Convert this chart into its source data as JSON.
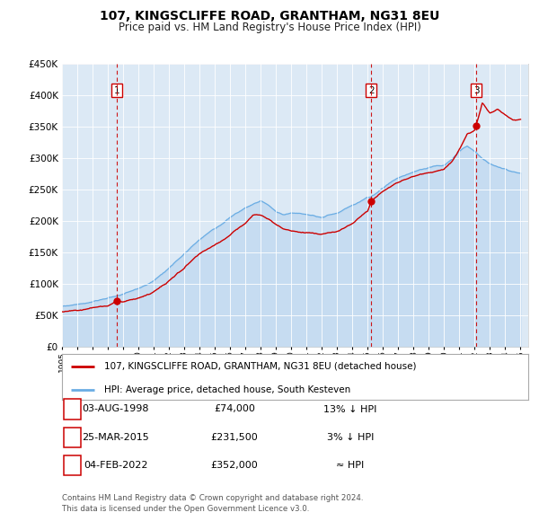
{
  "title": "107, KINGSCLIFFE ROAD, GRANTHAM, NG31 8EU",
  "subtitle": "Price paid vs. HM Land Registry's House Price Index (HPI)",
  "bg_color": "#dce9f5",
  "fig_bg_color": "#ffffff",
  "ylim": [
    0,
    450000
  ],
  "yticks": [
    0,
    50000,
    100000,
    150000,
    200000,
    250000,
    300000,
    350000,
    400000,
    450000
  ],
  "ytick_labels": [
    "£0",
    "£50K",
    "£100K",
    "£150K",
    "£200K",
    "£250K",
    "£300K",
    "£350K",
    "£400K",
    "£450K"
  ],
  "sale_color": "#cc0000",
  "hpi_color": "#6aade4",
  "hpi_fill_color": "#b8d4ef",
  "sale_points": [
    {
      "year": 1998.58,
      "value": 74000,
      "label": "1"
    },
    {
      "year": 2015.22,
      "value": 231500,
      "label": "2"
    },
    {
      "year": 2022.09,
      "value": 352000,
      "label": "3"
    }
  ],
  "vline_years": [
    1998.58,
    2015.22,
    2022.09
  ],
  "legend_sale_label": "107, KINGSCLIFFE ROAD, GRANTHAM, NG31 8EU (detached house)",
  "legend_hpi_label": "HPI: Average price, detached house, South Kesteven",
  "table_rows": [
    {
      "num": "1",
      "date": "03-AUG-1998",
      "price": "£74,000",
      "vs_hpi": "13% ↓ HPI"
    },
    {
      "num": "2",
      "date": "25-MAR-2015",
      "price": "£231,500",
      "vs_hpi": "3% ↓ HPI"
    },
    {
      "num": "3",
      "date": "04-FEB-2022",
      "price": "£352,000",
      "vs_hpi": "≈ HPI"
    }
  ],
  "footer_line1": "Contains HM Land Registry data © Crown copyright and database right 2024.",
  "footer_line2": "This data is licensed under the Open Government Licence v3.0."
}
